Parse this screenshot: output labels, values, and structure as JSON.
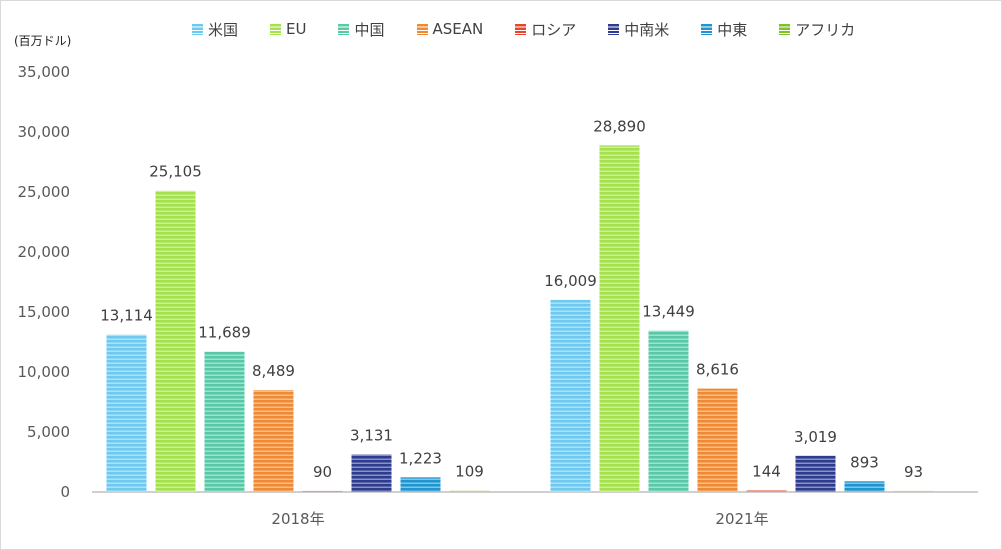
{
  "chart_data": {
    "type": "bar",
    "unit_label": "(百万ドル)",
    "categories": [
      "2018年",
      "2021年"
    ],
    "series": [
      {
        "name": "米国",
        "color": "#6ec9f0",
        "values": [
          13114,
          16009
        ],
        "labels": [
          "13,114",
          "16,009"
        ]
      },
      {
        "name": "EU",
        "color": "#a3e24a",
        "values": [
          25105,
          28890
        ],
        "labels": [
          "25,105",
          "28,890"
        ]
      },
      {
        "name": "中国",
        "color": "#57c9a7",
        "values": [
          11689,
          13449
        ],
        "labels": [
          "11,689",
          "13,449"
        ]
      },
      {
        "name": "ASEAN",
        "color": "#ef8a33",
        "values": [
          8489,
          8616
        ],
        "labels": [
          "8,489",
          "8,616"
        ]
      },
      {
        "name": "ロシア",
        "color": "#e8452e",
        "values": [
          90,
          144
        ],
        "labels": [
          "90",
          "144"
        ]
      },
      {
        "name": "中南米",
        "color": "#2e3c8f",
        "values": [
          3131,
          3019
        ],
        "labels": [
          "3,131",
          "3,019"
        ]
      },
      {
        "name": "中東",
        "color": "#1f95cf",
        "values": [
          1223,
          893
        ],
        "labels": [
          "1,223",
          "893"
        ]
      },
      {
        "name": "アフリカ",
        "color": "#7fbf2a",
        "values": [
          109,
          93
        ],
        "labels": [
          "109",
          "93"
        ]
      }
    ],
    "ylim": [
      0,
      35000
    ],
    "yticks": [
      "0",
      "5,000",
      "10,000",
      "15,000",
      "20,000",
      "25,000",
      "30,000",
      "35,000"
    ],
    "ytick_values": [
      0,
      5000,
      10000,
      15000,
      20000,
      25000,
      30000,
      35000
    ],
    "grid": false,
    "legend_position": "top"
  }
}
